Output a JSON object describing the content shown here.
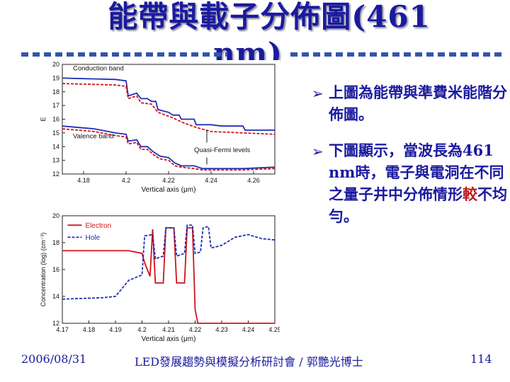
{
  "title": {
    "line1": "能帶與載子分佈圖(461",
    "line2": "nm)"
  },
  "bullets": [
    {
      "text": "上圖為能帶與準費米能階分佈圖。"
    },
    {
      "text_main": "下圖顯示，當波長為461 nm時，電子與電洞在不同之量子井中分佈情形",
      "text_accent": "較",
      "text_tail": "不均勻。"
    }
  ],
  "colors": {
    "title": "#1a1a9e",
    "accent": "#c0181c",
    "blue_series": "#1f2fb5",
    "red_series": "#d0141a"
  },
  "icons": {
    "bullet": "arrow-bullet-icon"
  },
  "footer": {
    "date": "2006/08/31",
    "seminar": "LED發展趨勢與模擬分析研討會 / 郭艷光博士",
    "page": "114"
  },
  "chart_data": [
    {
      "type": "line",
      "title": "",
      "xlabel": "Vertical axis (μm)",
      "ylabel": "E",
      "xlim": [
        4.17,
        4.27
      ],
      "ylim": [
        12,
        20
      ],
      "x_ticks": [
        "4.18",
        "4.2",
        "4.22",
        "4.24",
        "4.26"
      ],
      "y_ticks": [
        "12",
        "13",
        "14",
        "15",
        "16",
        "17",
        "18",
        "19",
        "20"
      ],
      "annotations": [
        "Conduction band",
        "Valence band",
        "Quasi-Fermi levels"
      ],
      "series": [
        {
          "color": "#1f2fb5",
          "style": "solid",
          "points": [
            [
              4.17,
              19.0
            ],
            [
              4.195,
              18.9
            ],
            [
              4.2,
              18.8
            ],
            [
              4.201,
              17.7
            ],
            [
              4.205,
              17.9
            ],
            [
              4.207,
              17.5
            ],
            [
              4.21,
              17.5
            ],
            [
              4.212,
              17.3
            ],
            [
              4.214,
              17.3
            ],
            [
              4.215,
              16.7
            ],
            [
              4.22,
              16.5
            ],
            [
              4.222,
              16.3
            ],
            [
              4.225,
              16.3
            ],
            [
              4.226,
              16.0
            ],
            [
              4.232,
              16.0
            ],
            [
              4.233,
              15.6
            ],
            [
              4.24,
              15.6
            ],
            [
              4.245,
              15.5
            ],
            [
              4.255,
              15.5
            ],
            [
              4.256,
              15.2
            ],
            [
              4.26,
              15.2
            ],
            [
              4.27,
              15.2
            ]
          ]
        },
        {
          "color": "#d0141a",
          "style": "dashed",
          "points": [
            [
              4.17,
              18.6
            ],
            [
              4.195,
              18.5
            ],
            [
              4.2,
              18.4
            ],
            [
              4.201,
              17.5
            ],
            [
              4.205,
              17.7
            ],
            [
              4.207,
              17.2
            ],
            [
              4.212,
              17.1
            ],
            [
              4.215,
              16.5
            ],
            [
              4.222,
              16.1
            ],
            [
              4.226,
              15.8
            ],
            [
              4.233,
              15.4
            ],
            [
              4.24,
              15.1
            ],
            [
              4.255,
              15.0
            ],
            [
              4.27,
              14.9
            ]
          ]
        },
        {
          "color": "#1f2fb5",
          "style": "solid",
          "points": [
            [
              4.17,
              15.5
            ],
            [
              4.185,
              15.3
            ],
            [
              4.195,
              15.0
            ],
            [
              4.2,
              14.9
            ],
            [
              4.201,
              14.4
            ],
            [
              4.205,
              14.5
            ],
            [
              4.207,
              14.0
            ],
            [
              4.21,
              14.0
            ],
            [
              4.213,
              13.6
            ],
            [
              4.216,
              13.3
            ],
            [
              4.22,
              13.2
            ],
            [
              4.223,
              12.8
            ],
            [
              4.226,
              12.6
            ],
            [
              4.232,
              12.6
            ],
            [
              4.236,
              12.4
            ],
            [
              4.245,
              12.4
            ],
            [
              4.255,
              12.4
            ],
            [
              4.27,
              12.5
            ]
          ]
        },
        {
          "color": "#d0141a",
          "style": "dashed",
          "points": [
            [
              4.17,
              15.3
            ],
            [
              4.185,
              15.1
            ],
            [
              4.195,
              14.8
            ],
            [
              4.2,
              14.7
            ],
            [
              4.201,
              14.2
            ],
            [
              4.205,
              14.3
            ],
            [
              4.207,
              13.8
            ],
            [
              4.21,
              13.8
            ],
            [
              4.213,
              13.4
            ],
            [
              4.216,
              13.1
            ],
            [
              4.22,
              13.0
            ],
            [
              4.223,
              12.6
            ],
            [
              4.226,
              12.5
            ],
            [
              4.232,
              12.4
            ],
            [
              4.236,
              12.3
            ],
            [
              4.255,
              12.3
            ],
            [
              4.27,
              12.4
            ]
          ]
        }
      ]
    },
    {
      "type": "line",
      "title": "",
      "xlabel": "Vertical axis (μm)",
      "ylabel": "Concentration (log) (cm⁻³)",
      "xlim": [
        4.17,
        4.25
      ],
      "ylim": [
        12,
        20
      ],
      "x_ticks": [
        "4.17",
        "4.18",
        "4.19",
        "4.2",
        "4.21",
        "4.22",
        "4.23",
        "4.24",
        "4.25"
      ],
      "y_ticks": [
        "12",
        "14",
        "16",
        "18",
        "20"
      ],
      "legend": "top-left",
      "series": [
        {
          "name": "Electron",
          "color": "#d0141a",
          "style": "solid",
          "points": [
            [
              4.17,
              17.4
            ],
            [
              4.195,
              17.4
            ],
            [
              4.2,
              17.2
            ],
            [
              4.201,
              16.5
            ],
            [
              4.203,
              15.5
            ],
            [
              4.204,
              19.0
            ],
            [
              4.205,
              15.0
            ],
            [
              4.208,
              15.0
            ],
            [
              4.209,
              19.1
            ],
            [
              4.212,
              19.1
            ],
            [
              4.213,
              15.0
            ],
            [
              4.216,
              15.0
            ],
            [
              4.217,
              19.1
            ],
            [
              4.219,
              19.1
            ],
            [
              4.22,
              13.0
            ],
            [
              4.221,
              12.0
            ],
            [
              4.25,
              12.0
            ]
          ]
        },
        {
          "name": "Hole",
          "color": "#1f2fb5",
          "style": "dashed",
          "points": [
            [
              4.17,
              13.8
            ],
            [
              4.185,
              13.9
            ],
            [
              4.19,
              14.0
            ],
            [
              4.195,
              15.2
            ],
            [
              4.2,
              15.6
            ],
            [
              4.201,
              18.5
            ],
            [
              4.204,
              18.6
            ],
            [
              4.205,
              16.8
            ],
            [
              4.208,
              17.0
            ],
            [
              4.209,
              19.1
            ],
            [
              4.212,
              19.1
            ],
            [
              4.213,
              17.0
            ],
            [
              4.216,
              17.2
            ],
            [
              4.217,
              19.3
            ],
            [
              4.219,
              19.3
            ],
            [
              4.22,
              17.2
            ],
            [
              4.222,
              17.3
            ],
            [
              4.223,
              19.1
            ],
            [
              4.225,
              19.2
            ],
            [
              4.226,
              17.6
            ],
            [
              4.23,
              17.8
            ],
            [
              4.235,
              18.4
            ],
            [
              4.24,
              18.6
            ],
            [
              4.245,
              18.3
            ],
            [
              4.25,
              18.2
            ]
          ]
        }
      ]
    }
  ]
}
